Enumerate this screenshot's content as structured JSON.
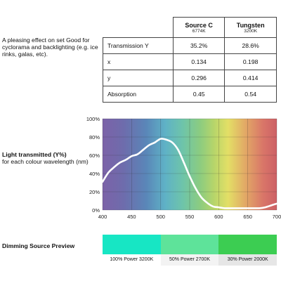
{
  "description": "A pleasing effect on set Good for cyclorama and backlighting (e.g. ice rinks, galas, etc).",
  "table": {
    "sources": [
      {
        "name": "Source C",
        "temp": "6774K"
      },
      {
        "name": "Tungsten",
        "temp": "3200K"
      }
    ],
    "rows": [
      {
        "label": "Transmission Y",
        "values": [
          "35.2%",
          "28.6%"
        ]
      },
      {
        "label": "x",
        "values": [
          "0.134",
          "0.198"
        ]
      },
      {
        "label": "y",
        "values": [
          "0.296",
          "0.414"
        ]
      },
      {
        "label": "Absorption",
        "values": [
          "0.45",
          "0.54"
        ]
      }
    ]
  },
  "chart_label": {
    "bold": "Light transmitted (Y%)",
    "rest": "for each colour wavelength (nm)"
  },
  "chart_data": {
    "type": "line",
    "x": [
      400,
      410,
      420,
      430,
      440,
      450,
      460,
      470,
      480,
      490,
      500,
      510,
      520,
      530,
      540,
      550,
      560,
      570,
      580,
      590,
      600,
      610,
      620,
      630,
      640,
      650,
      660,
      670,
      680,
      690,
      700
    ],
    "series": [
      {
        "values": [
          31,
          41,
          47,
          52,
          55,
          59,
          61,
          66,
          71,
          74,
          78,
          77,
          74,
          66,
          52,
          37,
          24,
          14,
          8,
          4,
          3,
          2,
          2,
          2,
          2,
          2,
          2,
          2,
          3,
          5,
          7
        ]
      }
    ],
    "xlim": [
      400,
      700
    ],
    "ylim": [
      0,
      100
    ],
    "xticks": [
      "400",
      "450",
      "500",
      "550",
      "600",
      "650",
      "700"
    ],
    "yticks": [
      "0%",
      "20%",
      "40%",
      "60%",
      "80%",
      "100%"
    ],
    "grid": true,
    "line_color": "#ffffff"
  },
  "dimming": {
    "title": "Dimming Source Preview",
    "swatches": [
      {
        "label": "100% Power 3200K",
        "color": "#17e6c4"
      },
      {
        "label": "50% Power 2700K",
        "color": "#5ee39a"
      },
      {
        "label": "30% Power 2000K",
        "color": "#3ccd52"
      }
    ]
  }
}
